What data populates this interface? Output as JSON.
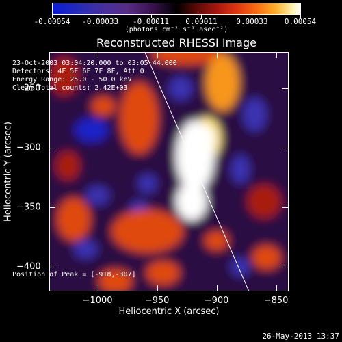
{
  "colorbar": {
    "tick_labels": [
      "-0.00054",
      "-0.00033",
      "-0.00011",
      "0.00011",
      "0.00033",
      "0.00054"
    ],
    "tick_values": [
      -0.00054,
      -0.00033,
      -0.00011,
      0.00011,
      0.00033,
      0.00054
    ],
    "units": "(photons cm⁻² s⁻¹ asec⁻²)",
    "colors": [
      "#0b1bd6",
      "#572c86",
      "#000000",
      "#dc3410",
      "#ffae2a",
      "#ffffff"
    ]
  },
  "title": "Reconstructed RHESSI Image",
  "info": {
    "time_range": "23-Oct-2003 03:04:20.000 to 03:05:44.000",
    "detectors": "Detectors: 4F 5F 6F 7F 8F, Att 0",
    "energy": "Energy Range: 25.0 - 50.0 keV",
    "clean": "Clean    Total counts: 2.42E+03",
    "peak": "Position of Peak = [-918,-307]"
  },
  "axes": {
    "xlabel": "Heliocentric X (arcsec)",
    "ylabel": "Heliocentric Y (arcsec)",
    "x_range": [
      -1040,
      -840
    ],
    "y_range": [
      -420,
      -220
    ],
    "x_ticks": [
      -1000,
      -950,
      -900,
      -850
    ],
    "x_tick_labels": [
      "−1000",
      "−950",
      "−900",
      "−850"
    ],
    "y_ticks": [
      -250,
      -300,
      -350,
      -400
    ],
    "y_tick_labels": [
      "−250",
      "−300",
      "−350",
      "−400"
    ]
  },
  "limb_line": {
    "x": [
      -960,
      -873
    ],
    "y": [
      -220,
      -420
    ]
  },
  "blobs": [
    {
      "x": -918,
      "y": -307,
      "rx": 16,
      "ry": 30,
      "level": 1.0
    },
    {
      "x": -921,
      "y": -345,
      "rx": 13,
      "ry": 16,
      "level": 1.0
    },
    {
      "x": -908,
      "y": -292,
      "rx": 12,
      "ry": 18,
      "level": 0.9
    },
    {
      "x": -895,
      "y": -245,
      "rx": 14,
      "ry": 24,
      "level": 0.7
    },
    {
      "x": -925,
      "y": -222,
      "rx": 30,
      "ry": 8,
      "level": 0.6
    },
    {
      "x": -995,
      "y": -265,
      "rx": 10,
      "ry": 8,
      "level": 0.6
    },
    {
      "x": -965,
      "y": -275,
      "rx": 16,
      "ry": 30,
      "level": 0.55
    },
    {
      "x": -958,
      "y": -370,
      "rx": 30,
      "ry": 18,
      "level": 0.6
    },
    {
      "x": -1020,
      "y": -360,
      "rx": 14,
      "ry": 18,
      "level": 0.55
    },
    {
      "x": -985,
      "y": -412,
      "rx": 14,
      "ry": 10,
      "level": 0.6
    },
    {
      "x": -945,
      "y": -405,
      "rx": 14,
      "ry": 10,
      "level": 0.5
    },
    {
      "x": -900,
      "y": -378,
      "rx": 10,
      "ry": 8,
      "level": 0.55
    },
    {
      "x": -858,
      "y": -392,
      "rx": 12,
      "ry": 10,
      "level": 0.55
    },
    {
      "x": -860,
      "y": -345,
      "rx": 14,
      "ry": 14,
      "level": 0.45
    },
    {
      "x": -1028,
      "y": -240,
      "rx": 12,
      "ry": 16,
      "level": 0.45
    },
    {
      "x": -1025,
      "y": -315,
      "rx": 10,
      "ry": 12,
      "level": 0.45
    },
    {
      "x": -1005,
      "y": -285,
      "rx": 14,
      "ry": 10,
      "level": -0.7
    },
    {
      "x": -930,
      "y": -250,
      "rx": 10,
      "ry": 10,
      "level": -0.55
    },
    {
      "x": -868,
      "y": -272,
      "rx": 10,
      "ry": 14,
      "level": -0.6
    },
    {
      "x": -1000,
      "y": -340,
      "rx": 10,
      "ry": 8,
      "level": -0.55
    },
    {
      "x": -958,
      "y": -330,
      "rx": 8,
      "ry": 8,
      "level": -0.5
    },
    {
      "x": -965,
      "y": -352,
      "rx": 8,
      "ry": 8,
      "level": -0.5
    },
    {
      "x": -1010,
      "y": -385,
      "rx": 10,
      "ry": 8,
      "level": -0.55
    },
    {
      "x": -880,
      "y": -318,
      "rx": 8,
      "ry": 12,
      "level": -0.5
    },
    {
      "x": -880,
      "y": -400,
      "rx": 8,
      "ry": 8,
      "level": -0.5
    }
  ],
  "footer": {
    "timestamp": "26-May-2013 13:37"
  }
}
